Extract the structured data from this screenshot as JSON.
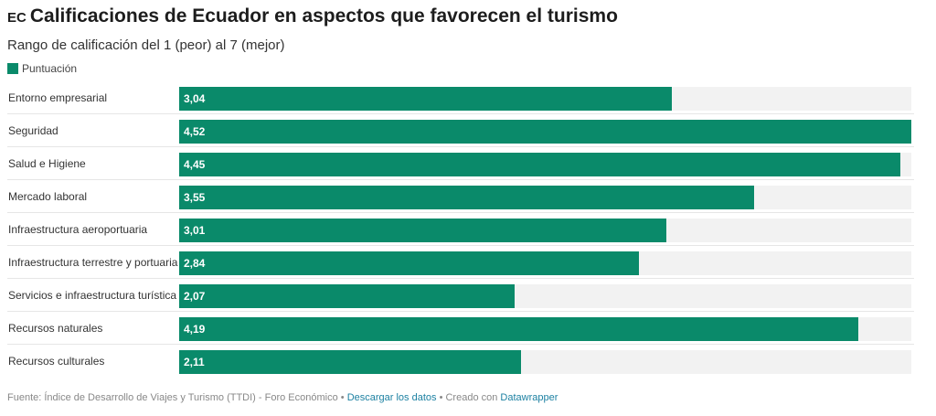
{
  "chart_data": {
    "type": "bar",
    "title_prefix": "EC",
    "title": "Calificaciones de Ecuador en aspectos que favorecen el turismo",
    "subtitle": "Rango de calificación del 1 (peor) al 7 (mejor)",
    "legend": [
      "Puntuación"
    ],
    "color": "#0a8a6a",
    "orientation": "horizontal",
    "categories": [
      "Entorno empresarial",
      "Seguridad",
      "Salud e Higiene",
      "Mercado laboral",
      "Infraestructura aeroportuaria",
      "Infraestructura terrestre y portuaria",
      "Servicios e infraestructura turística",
      "Recursos naturales",
      "Recursos culturales"
    ],
    "series": [
      {
        "name": "Puntuación",
        "values": [
          3.04,
          4.52,
          4.45,
          3.55,
          3.01,
          2.84,
          2.07,
          4.19,
          2.11
        ]
      }
    ],
    "value_labels": [
      "3,04",
      "4,52",
      "4,45",
      "3,55",
      "3,01",
      "2,84",
      "2,07",
      "4,19",
      "2,11"
    ],
    "xlim": [
      0,
      4.52
    ]
  },
  "footer": {
    "source": "Fuente: Índice de Desarrollo de Viajes y Turismo (TTDI) - Foro Económico • ",
    "download": "Descargar los datos",
    "created": " • Creado con ",
    "datawrapper": "Datawrapper"
  }
}
